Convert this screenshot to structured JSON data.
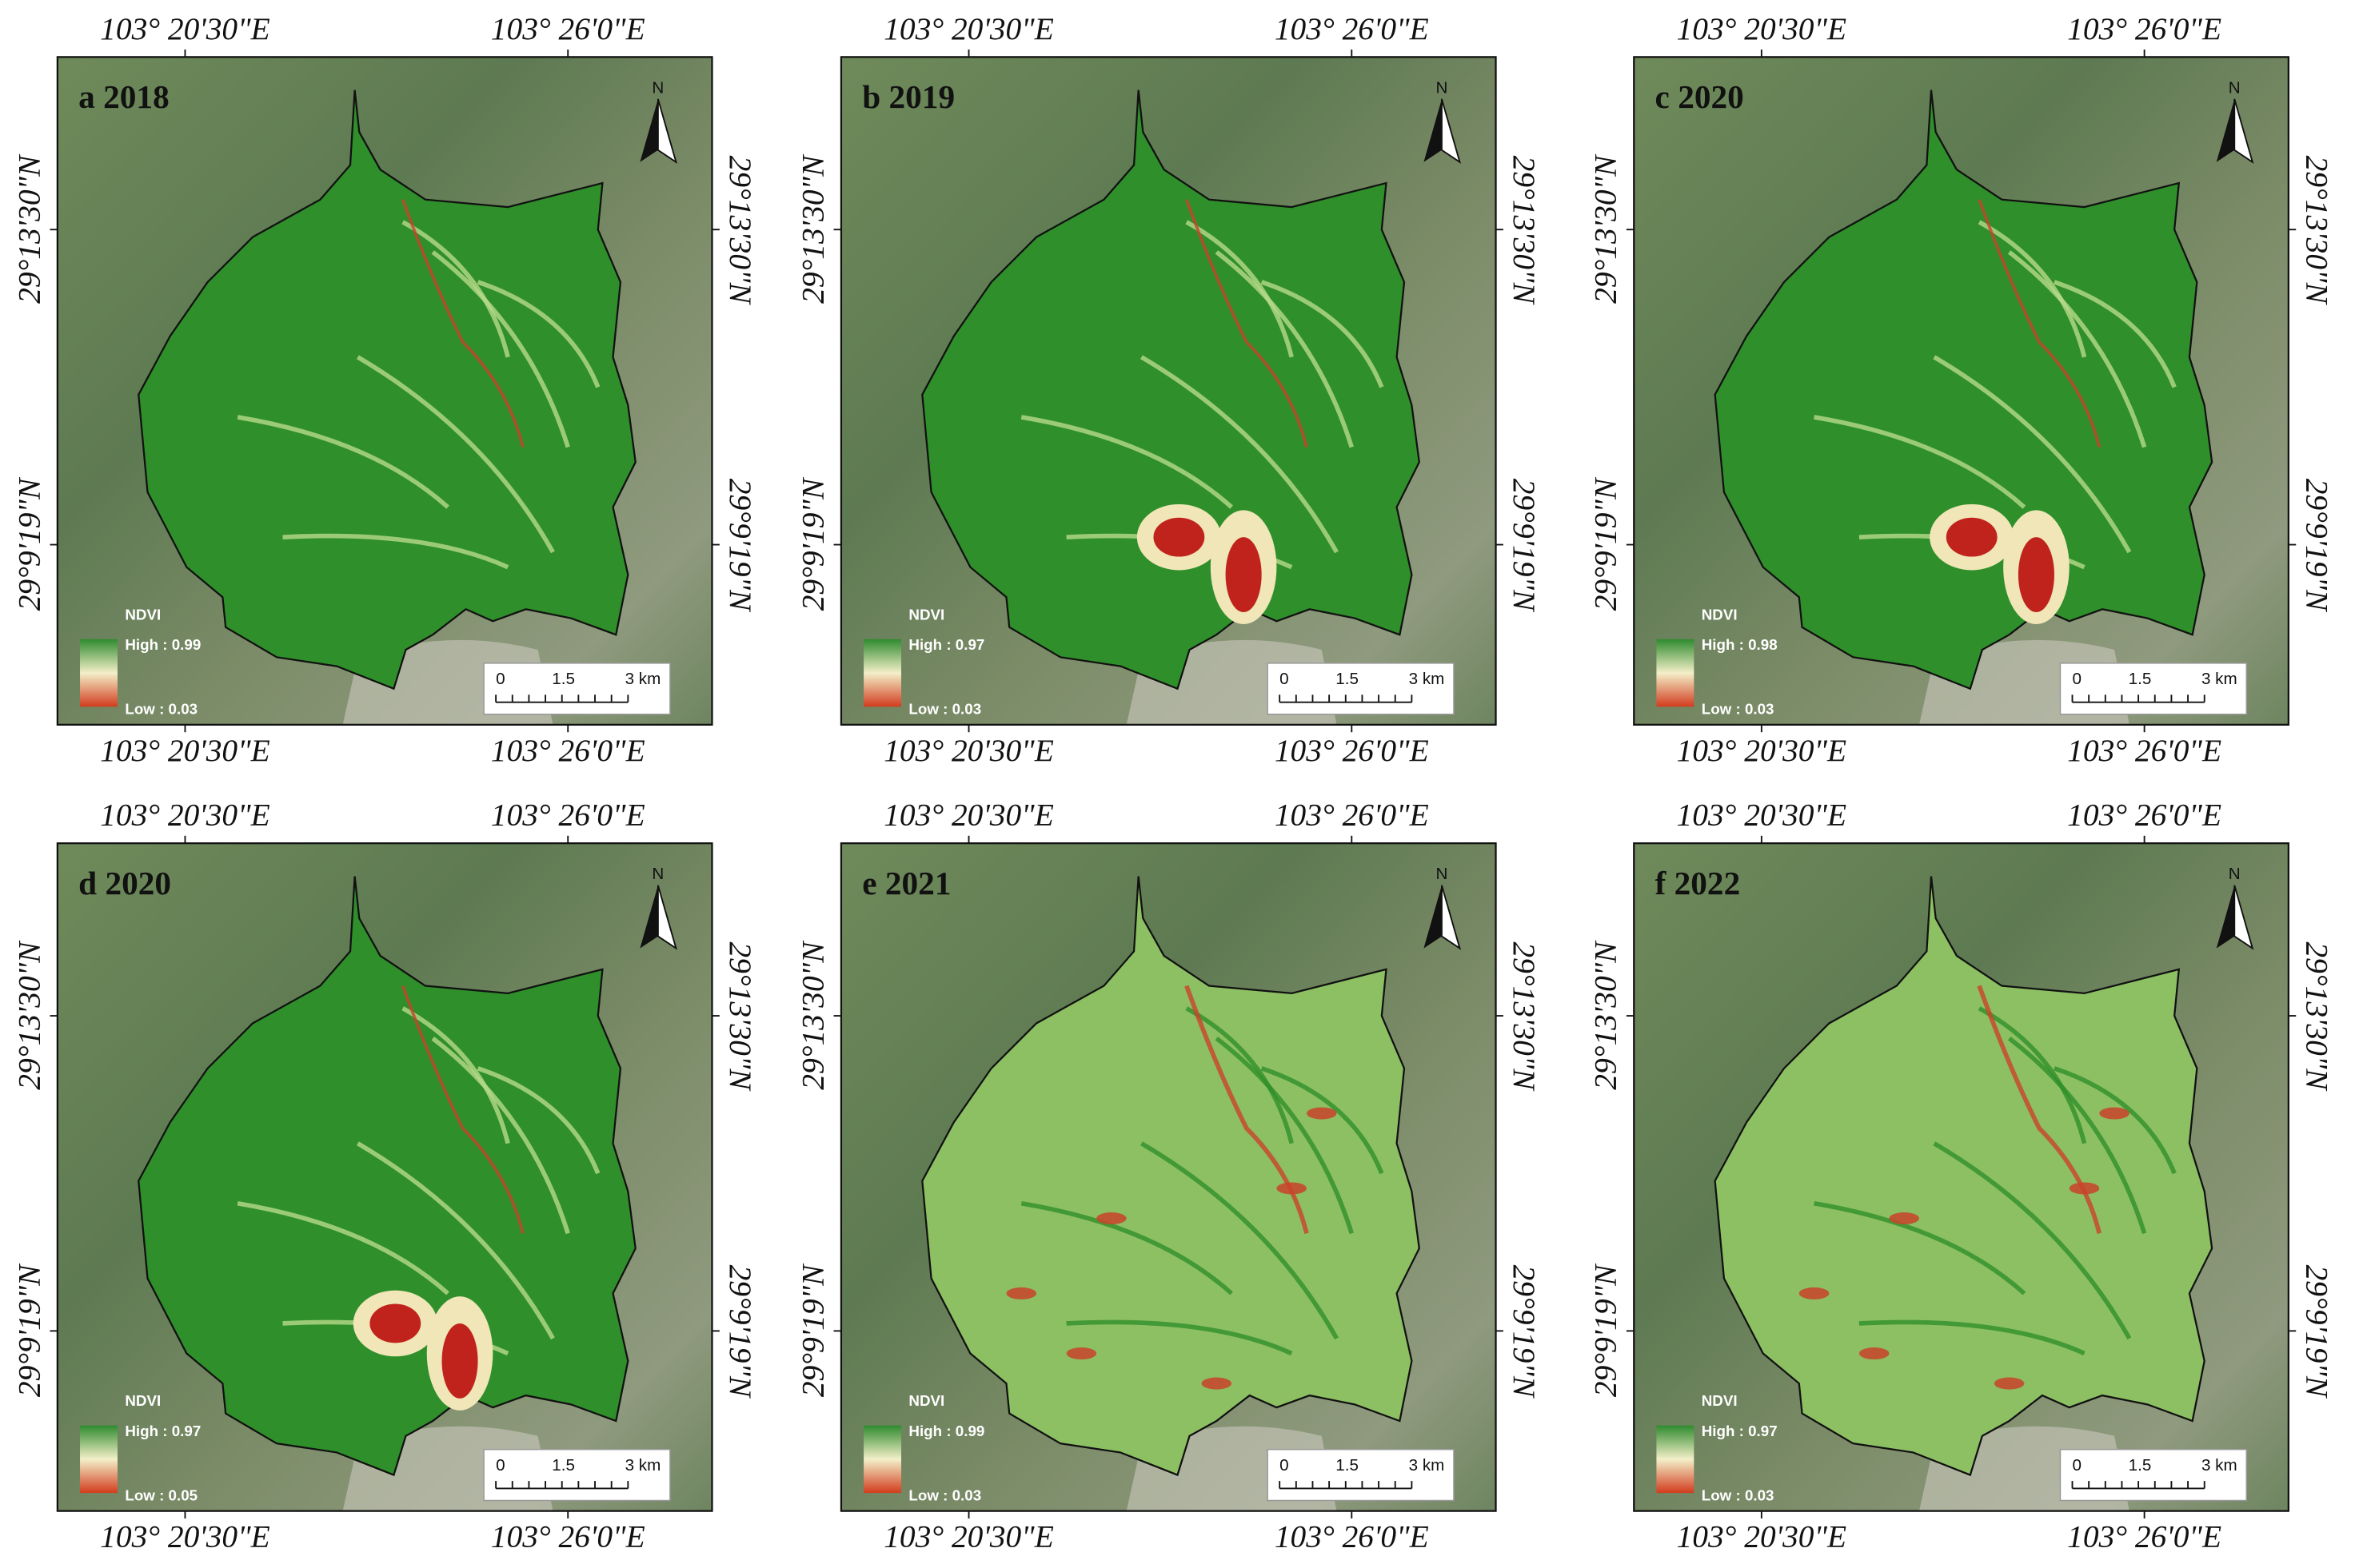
{
  "panels": [
    {
      "label": "a 2018",
      "high": "High : 0.99",
      "low": "Low : 0.03"
    },
    {
      "label": "b 2019",
      "high": "High : 0.97",
      "low": "Low : 0.03"
    },
    {
      "label": "c 2020",
      "high": "High : 0.98",
      "low": "Low : 0.03"
    },
    {
      "label": "d 2020",
      "high": "High : 0.97",
      "low": "Low : 0.05"
    },
    {
      "label": "e 2021",
      "high": "High : 0.99",
      "low": "Low : 0.03"
    },
    {
      "label": "f 2022",
      "high": "High : 0.97",
      "low": "Low : 0.03"
    }
  ],
  "lon_labels": [
    "103° 20'30\"E",
    "103° 26'0\"E"
  ],
  "lat_labels": [
    "29°13'30\"N",
    "29°9'19\"N"
  ],
  "legend_title": "NDVI",
  "scale_labels": [
    "0",
    "1.5",
    "3 km"
  ],
  "north": "N"
}
